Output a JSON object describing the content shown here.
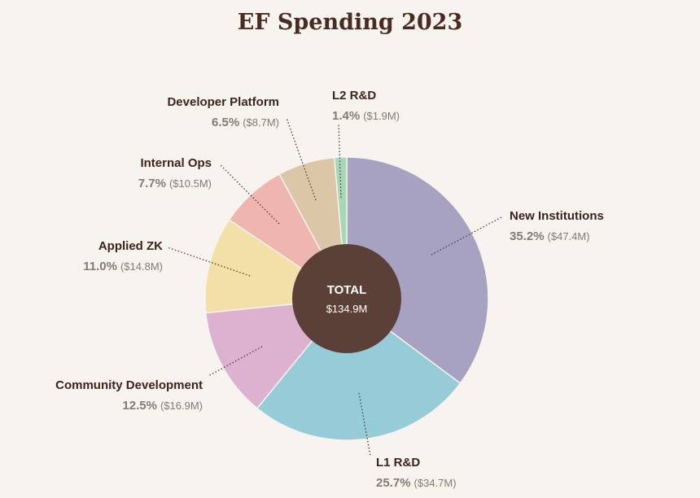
{
  "chart_data": {
    "type": "pie",
    "title": "EF Spending 2023",
    "center": {
      "title": "TOTAL",
      "value": "$134.9M"
    },
    "slices": [
      {
        "key": "new-institutions",
        "label": "New Institutions",
        "percent": 35.2,
        "percent_text": "35.2%",
        "amount": "($47.4M)",
        "color": "#a7a2c2"
      },
      {
        "key": "l1-rd",
        "label": "L1 R&D",
        "percent": 25.7,
        "percent_text": "25.7%",
        "amount": "($34.7M)",
        "color": "#96ccd7"
      },
      {
        "key": "community-development",
        "label": "Community Development",
        "percent": 12.5,
        "percent_text": "12.5%",
        "amount": "($16.9M)",
        "color": "#ddb1d0"
      },
      {
        "key": "applied-zk",
        "label": "Applied ZK",
        "percent": 11.0,
        "percent_text": "11.0%",
        "amount": "($14.8M)",
        "color": "#f2e0a8"
      },
      {
        "key": "internal-ops",
        "label": "Internal Ops",
        "percent": 7.7,
        "percent_text": "7.7%",
        "amount": "($10.5M)",
        "color": "#efb6b0"
      },
      {
        "key": "developer-platform",
        "label": "Developer Platform",
        "percent": 6.5,
        "percent_text": "6.5%",
        "amount": "($8.7M)",
        "color": "#dcc6a8"
      },
      {
        "key": "l2-rd",
        "label": "L2 R&D",
        "percent": 1.4,
        "percent_text": "1.4%",
        "amount": "($1.9M)",
        "color": "#a8d6b8"
      }
    ],
    "colors": {
      "center": "#5b4037",
      "text": "#3d241c",
      "muted": "#857a74",
      "background": "#f7f3ee"
    }
  }
}
